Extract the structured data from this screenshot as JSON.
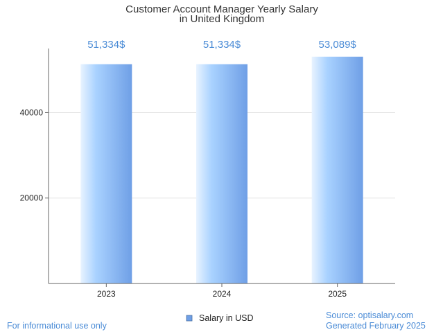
{
  "chart_data": {
    "type": "bar",
    "title_lines": [
      "Customer Account Manager Yearly Salary",
      "in United Kingdom"
    ],
    "categories": [
      "2023",
      "2024",
      "2025"
    ],
    "series": [
      {
        "name": "Salary in USD",
        "values": [
          51334,
          51334,
          53089
        ],
        "labels": [
          "51,334$",
          "51,334$",
          "53,089$"
        ]
      }
    ],
    "yticks": [
      20000,
      40000
    ],
    "ytick_labels": [
      "20000",
      "40000"
    ],
    "ylim": [
      0,
      55000
    ],
    "xlabel": "",
    "ylabel": "",
    "grid": true,
    "legend_position": "bottom-center",
    "colors": {
      "bar_light": "#e8f3ff",
      "bar_mid": "#a9d2ff",
      "bar_dark": "#6f9fe6",
      "accent_text": "#4a8bd6",
      "legend_swatch": "#6f9fe6"
    }
  },
  "footer": {
    "left": "For informational use only",
    "source": "Source: optisalary.com",
    "generated": "Generated February 2025"
  }
}
